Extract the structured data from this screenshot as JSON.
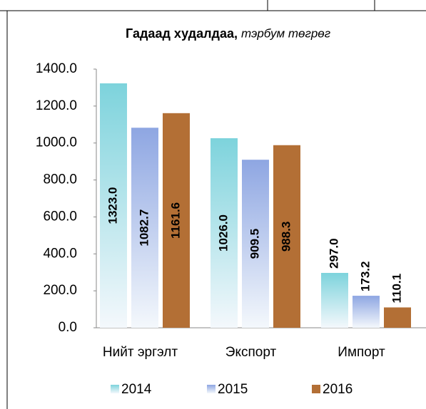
{
  "chart_data": {
    "type": "bar",
    "title": "Гадаад худалдаа,",
    "title_unit": "тэрбум  төгрөг",
    "categories": [
      "Нийт  эргэлт",
      "Экспорт",
      "Импорт"
    ],
    "series": [
      {
        "name": "2014",
        "color": "#7dd3dc",
        "values": [
          1323,
          1026,
          297
        ],
        "value_labels": [
          "1323.0",
          "1026.0",
          "297.0"
        ]
      },
      {
        "name": "2015",
        "color": "#8ea6e2",
        "values": [
          1082.7,
          909.5,
          173.2
        ],
        "value_labels": [
          "1082.7",
          "909.5",
          "173.2"
        ]
      },
      {
        "name": "2016",
        "color": "#b36f35",
        "values": [
          1161.6,
          988.3,
          110.1
        ],
        "value_labels": [
          "1161.6",
          "988.3",
          "110.1"
        ]
      }
    ],
    "ylim": [
      0,
      1400
    ],
    "yticks": [
      {
        "value": 0,
        "label": "0.0"
      },
      {
        "value": 200,
        "label": "200.0"
      },
      {
        "value": 400,
        "label": "400.0"
      },
      {
        "value": 600,
        "label": "600.0"
      },
      {
        "value": 800,
        "label": "800.0"
      },
      {
        "value": 1000,
        "label": "1000.0"
      },
      {
        "value": 1200,
        "label": "1200.0"
      },
      {
        "value": 1400,
        "label": "1400.0"
      }
    ],
    "legend": "bottom"
  }
}
